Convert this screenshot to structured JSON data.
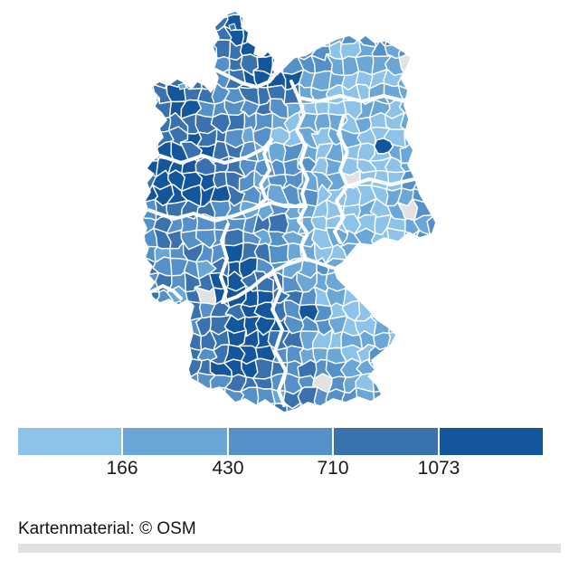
{
  "map": {
    "name": "germany-districts-choropleth",
    "palette": [
      "#8dc3e8",
      "#6aa6d6",
      "#5590c8",
      "#3a72b0",
      "#14569b"
    ],
    "no_data_color": "#e2e2e2",
    "boundary_color": "#ffffff"
  },
  "legend": {
    "labels": [
      "166",
      "430",
      "710",
      "1073"
    ]
  },
  "attribution": {
    "text": "Kartenmaterial: © OSM"
  },
  "chart_data": {
    "type": "choropleth",
    "region": "Germany",
    "unit": "districts (Kreise)",
    "class_breaks": [
      166,
      430,
      710,
      1073
    ],
    "class_colors": [
      "#8dc3e8",
      "#6aa6d6",
      "#5590c8",
      "#3a72b0",
      "#14569b"
    ],
    "no_data_color": "#e2e2e2",
    "legend_position": "below-map",
    "attribution": "Kartenmaterial: © OSM"
  }
}
